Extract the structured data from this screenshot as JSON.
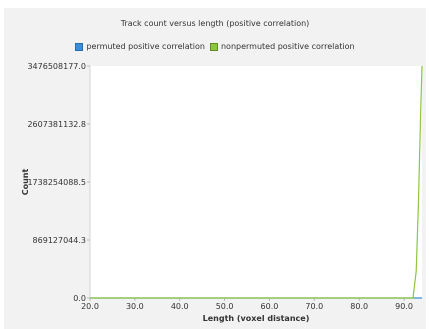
{
  "chart_data": {
    "type": "line",
    "title": "Track count versus length (positive correlation)",
    "xlabel": "Length (voxel distance)",
    "ylabel": "Count",
    "xlim": [
      20.0,
      94.0
    ],
    "ylim": [
      0.0,
      3476508177.0
    ],
    "x_ticks": [
      "20.0",
      "30.0",
      "40.0",
      "50.0",
      "60.0",
      "70.0",
      "80.0",
      "90.0"
    ],
    "y_ticks": [
      "0.0",
      "869127044.3",
      "1738254088.5",
      "2607381132.8",
      "3476508177.0"
    ],
    "grid": false,
    "legend_position": "top",
    "series": [
      {
        "name": "permuted positive correlation",
        "color": "#3a8fd6",
        "x": [
          20.0,
          93.0,
          94.0
        ],
        "y": [
          0,
          0,
          0
        ]
      },
      {
        "name": "nonpermuted positive correlation",
        "color": "#8dc63f",
        "x": [
          20.0,
          92.0,
          92.7,
          93.2,
          93.7,
          94.0
        ],
        "y": [
          0,
          0,
          400000000,
          1400000000,
          2800000000,
          3476508177.0
        ]
      }
    ]
  }
}
